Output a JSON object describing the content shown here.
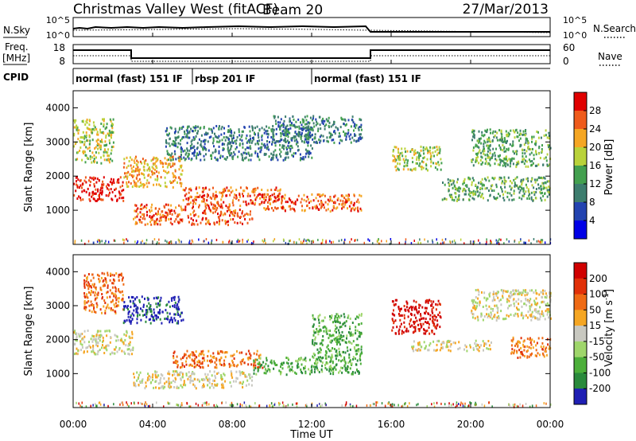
{
  "header": {
    "radar_title": "Christmas Valley West (fitACF)",
    "beam": "Beam 20",
    "date": "27/Mar/2013"
  },
  "top_panels": {
    "nsky_label": "N.Sky",
    "nsky_ticks": [
      "10^5",
      "10^0"
    ],
    "nsearch_label": "N.Search",
    "nsearch_ticks": [
      "10^5",
      "10^0"
    ],
    "freq_label": "Freq.",
    "freq_unit": "[MHz]",
    "freq_ticks": [
      "18",
      "8"
    ],
    "nave_label": "Nave",
    "nave_ticks": [
      "60",
      "0"
    ],
    "cpid_label": "CPID",
    "cpid_segments": [
      {
        "label": "normal (fast) 151 IF",
        "start_h": 0,
        "end_h": 6
      },
      {
        "label": "rbsp 201 IF",
        "start_h": 6,
        "end_h": 12
      },
      {
        "label": "normal (fast) 151 IF",
        "start_h": 12,
        "end_h": 24
      }
    ]
  },
  "axes": {
    "ylabel": "Slant Range [km]",
    "yticks": [
      "1000",
      "2000",
      "3000",
      "4000"
    ],
    "xlabel": "Time UT",
    "xticks": [
      "00:00",
      "04:00",
      "08:00",
      "12:00",
      "16:00",
      "20:00",
      "00:00"
    ]
  },
  "chart_data": [
    {
      "type": "heatmap",
      "title": "",
      "xlabel": "Time UT",
      "ylabel": "Slant Range [km]",
      "xlim": [
        0,
        24
      ],
      "ylim": [
        0,
        4500
      ],
      "colorbar": {
        "label": "Power [dB]",
        "ticks": [
          "28",
          "24",
          "20",
          "16",
          "12",
          "8",
          "4"
        ],
        "colors": [
          "#0000e6",
          "#2343b0",
          "#3d7d6e",
          "#43a04f",
          "#b9d23a",
          "#f5a623",
          "#ef5b1b",
          "#e00000"
        ]
      },
      "regions": [
        {
          "t0": 0.0,
          "t1": 2.5,
          "r0": 1300,
          "r1": 2000,
          "level": 7
        },
        {
          "t0": 0.0,
          "t1": 2.0,
          "r0": 2400,
          "r1": 3700,
          "level": 4
        },
        {
          "t0": 2.5,
          "t1": 5.5,
          "r0": 1700,
          "r1": 2600,
          "level": 5
        },
        {
          "t0": 3.0,
          "t1": 9.0,
          "r0": 600,
          "r1": 1200,
          "level": 6
        },
        {
          "t0": 5.5,
          "t1": 10.5,
          "r0": 1200,
          "r1": 1700,
          "level": 6
        },
        {
          "t0": 9.5,
          "t1": 14.5,
          "r0": 1000,
          "r1": 1500,
          "level": 6
        },
        {
          "t0": 4.5,
          "t1": 12.0,
          "r0": 2500,
          "r1": 3500,
          "level": 2
        },
        {
          "t0": 10.0,
          "t1": 14.5,
          "r0": 3000,
          "r1": 3800,
          "level": 2
        },
        {
          "t0": 16.0,
          "t1": 18.5,
          "r0": 2200,
          "r1": 2900,
          "level": 4
        },
        {
          "t0": 18.5,
          "t1": 24.0,
          "r0": 1300,
          "r1": 2000,
          "level": 3
        },
        {
          "t0": 20.0,
          "t1": 24.0,
          "r0": 2300,
          "r1": 3400,
          "level": 3
        }
      ]
    },
    {
      "type": "heatmap",
      "title": "",
      "xlabel": "Time UT",
      "ylabel": "Slant Range [km]",
      "xlim": [
        0,
        24
      ],
      "ylim": [
        0,
        4500
      ],
      "colorbar": {
        "label": "Velocity [m s-1]",
        "ticks": [
          "200",
          "100",
          "50",
          "15",
          "-15",
          "-50",
          "-100",
          "-200"
        ],
        "colors": [
          "#1f1fb4",
          "#2a8a3c",
          "#4caf3a",
          "#9fd66b",
          "#c8c8c0",
          "#f5a623",
          "#ef6a14",
          "#e13008",
          "#d00000"
        ]
      },
      "regions": [
        {
          "t0": 0.0,
          "t1": 3.0,
          "r0": 1600,
          "r1": 2300,
          "level": 4
        },
        {
          "t0": 0.5,
          "t1": 2.5,
          "r0": 2800,
          "r1": 4000,
          "level": 6
        },
        {
          "t0": 2.5,
          "t1": 5.5,
          "r0": 2500,
          "r1": 3300,
          "level": 0
        },
        {
          "t0": 3.0,
          "t1": 9.0,
          "r0": 600,
          "r1": 1100,
          "level": 4
        },
        {
          "t0": 5.0,
          "t1": 9.5,
          "r0": 1200,
          "r1": 1700,
          "level": 6
        },
        {
          "t0": 9.0,
          "t1": 14.5,
          "r0": 1000,
          "r1": 1500,
          "level": 2
        },
        {
          "t0": 12.0,
          "t1": 14.5,
          "r0": 1500,
          "r1": 2800,
          "level": 2
        },
        {
          "t0": 16.0,
          "t1": 18.5,
          "r0": 2200,
          "r1": 3200,
          "level": 8
        },
        {
          "t0": 17.0,
          "t1": 21.0,
          "r0": 1700,
          "r1": 2000,
          "level": 4
        },
        {
          "t0": 20.0,
          "t1": 24.0,
          "r0": 2600,
          "r1": 3500,
          "level": 4
        },
        {
          "t0": 22.0,
          "t1": 24.0,
          "r0": 1500,
          "r1": 2100,
          "level": 6
        }
      ]
    }
  ]
}
